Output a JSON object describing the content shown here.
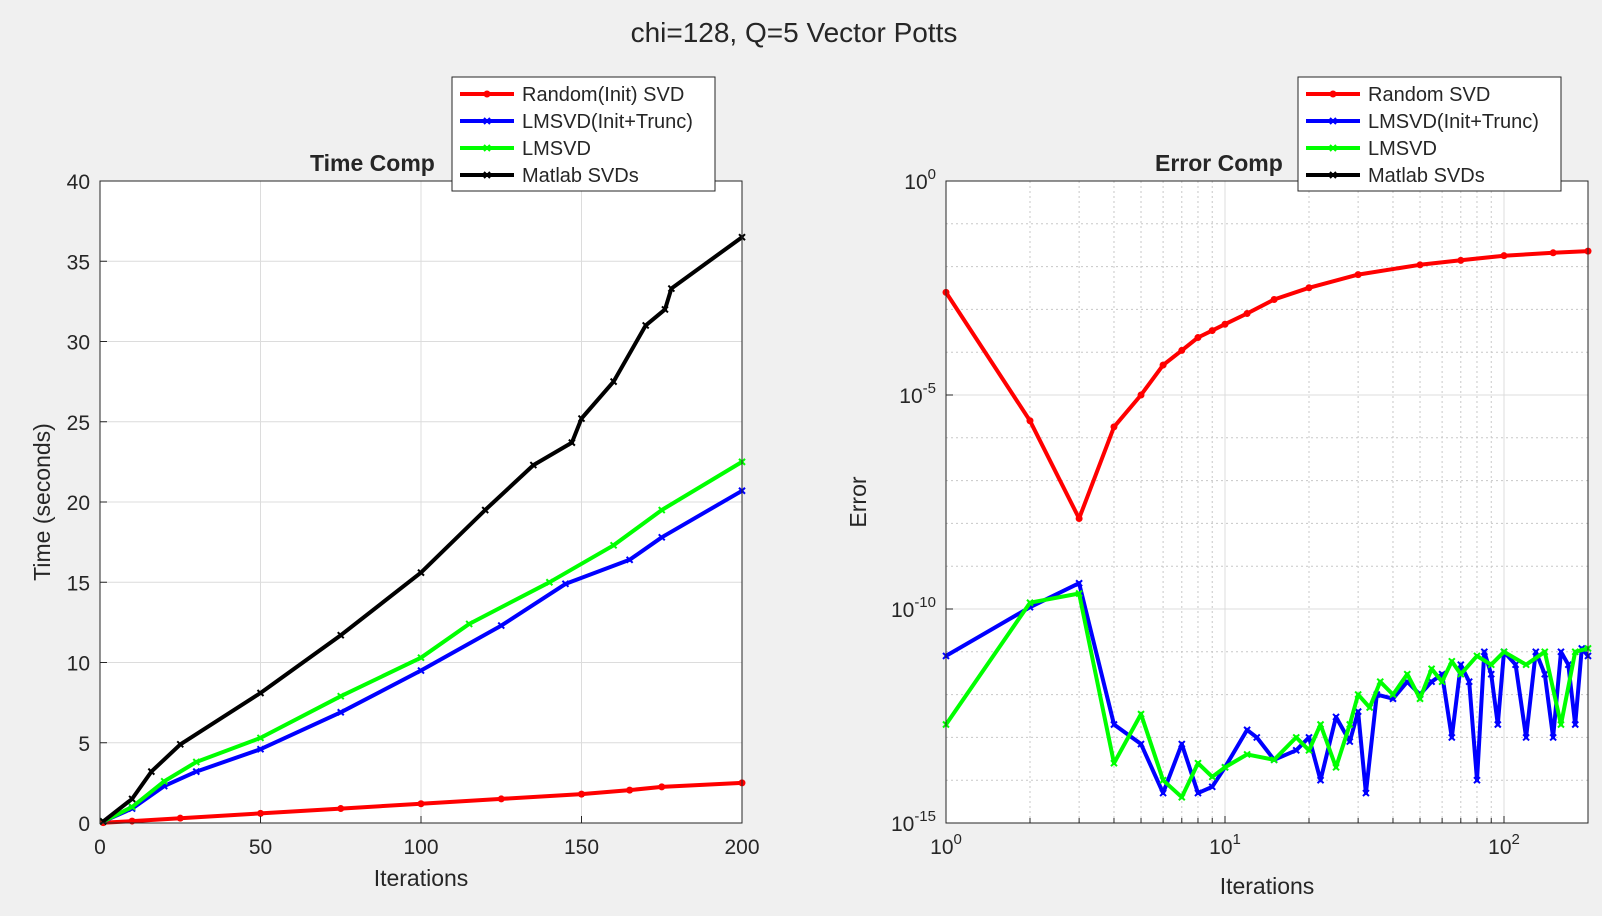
{
  "figure": {
    "suptitle": "chi=128, Q=5 Vector Potts"
  },
  "chart_data": [
    {
      "type": "line",
      "title": "Time Comp",
      "xlabel": "Iterations",
      "ylabel": "Time (seconds)",
      "xlim": [
        0,
        200
      ],
      "ylim": [
        0,
        40
      ],
      "xscale": "linear",
      "yscale": "linear",
      "xticks": [
        0,
        50,
        100,
        150,
        200
      ],
      "xtick_labels": [
        "0",
        "50",
        "100",
        "150",
        "200"
      ],
      "yticks": [
        0,
        5,
        10,
        15,
        20,
        25,
        30,
        35,
        40
      ],
      "ytick_labels": [
        "0",
        "5",
        "10",
        "15",
        "20",
        "25",
        "30",
        "35",
        "40"
      ],
      "grid": true,
      "legend_position": "top-right",
      "series": [
        {
          "name": "Random(Init) SVD",
          "color": "#ff0000",
          "marker": "dot",
          "points": [
            [
              1,
              0.02
            ],
            [
              10,
              0.12
            ],
            [
              25,
              0.3
            ],
            [
              50,
              0.6
            ],
            [
              75,
              0.9
            ],
            [
              100,
              1.2
            ],
            [
              125,
              1.5
            ],
            [
              150,
              1.8
            ],
            [
              165,
              2.05
            ],
            [
              175,
              2.25
            ],
            [
              200,
              2.5
            ]
          ]
        },
        {
          "name": "LMSVD(Init+Trunc)",
          "color": "#0000ff",
          "marker": "x",
          "points": [
            [
              1,
              0.1
            ],
            [
              10,
              0.9
            ],
            [
              20,
              2.3
            ],
            [
              30,
              3.2
            ],
            [
              50,
              4.6
            ],
            [
              75,
              6.9
            ],
            [
              100,
              9.5
            ],
            [
              125,
              12.3
            ],
            [
              145,
              14.9
            ],
            [
              165,
              16.4
            ],
            [
              175,
              17.8
            ],
            [
              200,
              20.7
            ]
          ]
        },
        {
          "name": "LMSVD",
          "color": "#00ff00",
          "marker": "x",
          "points": [
            [
              1,
              0.1
            ],
            [
              10,
              1.0
            ],
            [
              20,
              2.6
            ],
            [
              30,
              3.8
            ],
            [
              50,
              5.3
            ],
            [
              75,
              7.9
            ],
            [
              100,
              10.3
            ],
            [
              115,
              12.4
            ],
            [
              140,
              15.0
            ],
            [
              160,
              17.3
            ],
            [
              175,
              19.5
            ],
            [
              200,
              22.5
            ]
          ]
        },
        {
          "name": "Matlab SVDs",
          "color": "#000000",
          "marker": "x",
          "points": [
            [
              1,
              0.1
            ],
            [
              10,
              1.5
            ],
            [
              16,
              3.2
            ],
            [
              25,
              4.9
            ],
            [
              50,
              8.1
            ],
            [
              75,
              11.7
            ],
            [
              100,
              15.6
            ],
            [
              120,
              19.5
            ],
            [
              135,
              22.3
            ],
            [
              147,
              23.7
            ],
            [
              150,
              25.2
            ],
            [
              160,
              27.5
            ],
            [
              170,
              31.0
            ],
            [
              176,
              32.0
            ],
            [
              178,
              33.3
            ],
            [
              200,
              36.5
            ]
          ]
        }
      ]
    },
    {
      "type": "line",
      "title": "Error Comp",
      "xlabel": "Iterations",
      "ylabel": "Error",
      "xlim": [
        1,
        200
      ],
      "ylim": [
        1e-15,
        1
      ],
      "xscale": "log",
      "yscale": "log",
      "xticks": [
        1,
        10,
        100
      ],
      "xtick_labels": [
        {
          "base": "10",
          "exp": "0"
        },
        {
          "base": "10",
          "exp": "1"
        },
        {
          "base": "10",
          "exp": "2"
        }
      ],
      "yticks": [
        1,
        1e-05,
        1e-10,
        1e-15
      ],
      "ytick_labels": [
        {
          "base": "10",
          "exp": "0"
        },
        {
          "base": "10",
          "exp": "-5"
        },
        {
          "base": "10",
          "exp": "-10"
        },
        {
          "base": "10",
          "exp": "-15"
        }
      ],
      "grid": true,
      "minor_grid": true,
      "legend_position": "top-right",
      "series": [
        {
          "name": "Random SVD",
          "color": "#ff0000",
          "marker": "dot",
          "points": [
            [
              1,
              0.0025
            ],
            [
              2,
              2.5e-06
            ],
            [
              3,
              1.3e-08
            ],
            [
              4,
              1.8e-06
            ],
            [
              5,
              1e-05
            ],
            [
              6,
              5e-05
            ],
            [
              7,
              0.00011
            ],
            [
              8,
              0.00022
            ],
            [
              9,
              0.00032
            ],
            [
              10,
              0.00045
            ],
            [
              12,
              0.0008
            ],
            [
              15,
              0.0017
            ],
            [
              20,
              0.0032
            ],
            [
              30,
              0.0065
            ],
            [
              50,
              0.011
            ],
            [
              70,
              0.014
            ],
            [
              100,
              0.018
            ],
            [
              150,
              0.021
            ],
            [
              200,
              0.023
            ]
          ]
        },
        {
          "name": "LMSVD(Init+Trunc)",
          "color": "#0000ff",
          "marker": "x",
          "points": [
            [
              1,
              8e-12
            ],
            [
              2,
              1.1e-10
            ],
            [
              3,
              4e-10
            ],
            [
              4,
              2e-13
            ],
            [
              5,
              7e-14
            ],
            [
              6,
              5e-15
            ],
            [
              7,
              7e-14
            ],
            [
              8,
              5e-15
            ],
            [
              9,
              7e-15
            ],
            [
              10,
              2e-14
            ],
            [
              12,
              1.5e-13
            ],
            [
              13,
              1e-13
            ],
            [
              15,
              3e-14
            ],
            [
              18,
              5e-14
            ],
            [
              20,
              1e-13
            ],
            [
              22,
              1e-14
            ],
            [
              25,
              3e-13
            ],
            [
              28,
              8e-14
            ],
            [
              30,
              4e-13
            ],
            [
              32,
              5e-15
            ],
            [
              35,
              1e-12
            ],
            [
              40,
              8e-13
            ],
            [
              45,
              2e-12
            ],
            [
              50,
              1e-12
            ],
            [
              55,
              2e-12
            ],
            [
              60,
              3e-12
            ],
            [
              65,
              1e-13
            ],
            [
              70,
              5e-12
            ],
            [
              75,
              2e-12
            ],
            [
              80,
              1e-14
            ],
            [
              85,
              1e-11
            ],
            [
              90,
              3e-12
            ],
            [
              95,
              2e-13
            ],
            [
              100,
              1e-11
            ],
            [
              110,
              5e-12
            ],
            [
              120,
              1e-13
            ],
            [
              130,
              1e-11
            ],
            [
              140,
              3e-12
            ],
            [
              150,
              1e-13
            ],
            [
              160,
              1e-11
            ],
            [
              170,
              5e-12
            ],
            [
              180,
              2e-13
            ],
            [
              190,
              1.2e-11
            ],
            [
              200,
              8e-12
            ]
          ]
        },
        {
          "name": "LMSVD",
          "color": "#00ff00",
          "marker": "x",
          "points": [
            [
              1,
              2e-13
            ],
            [
              2,
              1.4e-10
            ],
            [
              3,
              2.3e-10
            ],
            [
              4,
              2.5e-14
            ],
            [
              5,
              3.5e-13
            ],
            [
              6,
              1e-14
            ],
            [
              7,
              4e-15
            ],
            [
              8,
              2.5e-14
            ],
            [
              9,
              1.2e-14
            ],
            [
              10,
              2e-14
            ],
            [
              12,
              4e-14
            ],
            [
              15,
              3e-14
            ],
            [
              18,
              1e-13
            ],
            [
              20,
              5e-14
            ],
            [
              22,
              2e-13
            ],
            [
              25,
              2e-14
            ],
            [
              28,
              2e-13
            ],
            [
              30,
              1e-12
            ],
            [
              33,
              5e-13
            ],
            [
              36,
              2e-12
            ],
            [
              40,
              1e-12
            ],
            [
              45,
              3e-12
            ],
            [
              50,
              8e-13
            ],
            [
              55,
              4e-12
            ],
            [
              60,
              2e-12
            ],
            [
              65,
              6e-12
            ],
            [
              70,
              3e-12
            ],
            [
              80,
              8e-12
            ],
            [
              90,
              5e-12
            ],
            [
              100,
              1e-11
            ],
            [
              120,
              5e-12
            ],
            [
              140,
              1e-11
            ],
            [
              160,
              2e-13
            ],
            [
              180,
              1e-11
            ],
            [
              200,
              1.2e-11
            ]
          ]
        },
        {
          "name": "Matlab SVDs",
          "color": "#000000",
          "marker": "x",
          "points": []
        }
      ]
    }
  ]
}
